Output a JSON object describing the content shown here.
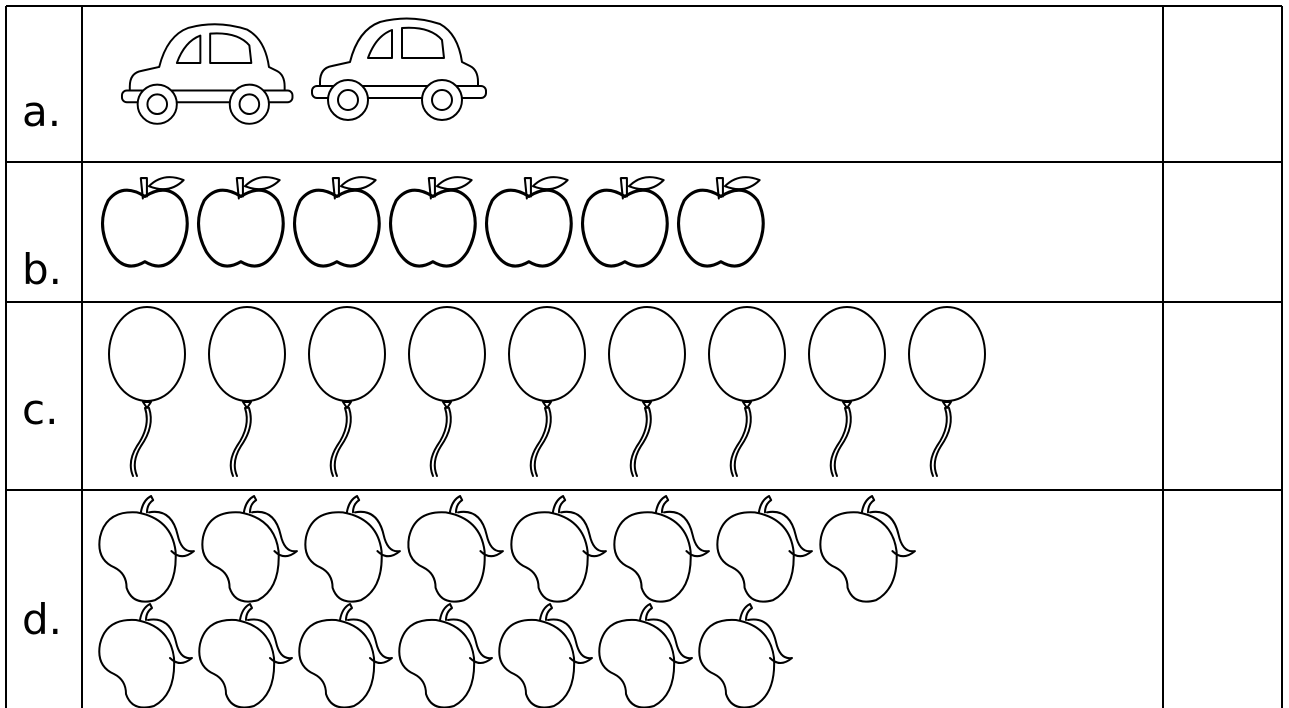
{
  "rows": [
    {
      "label": "a."
    },
    {
      "label": "b."
    },
    {
      "label": "c."
    },
    {
      "label": "d."
    }
  ]
}
